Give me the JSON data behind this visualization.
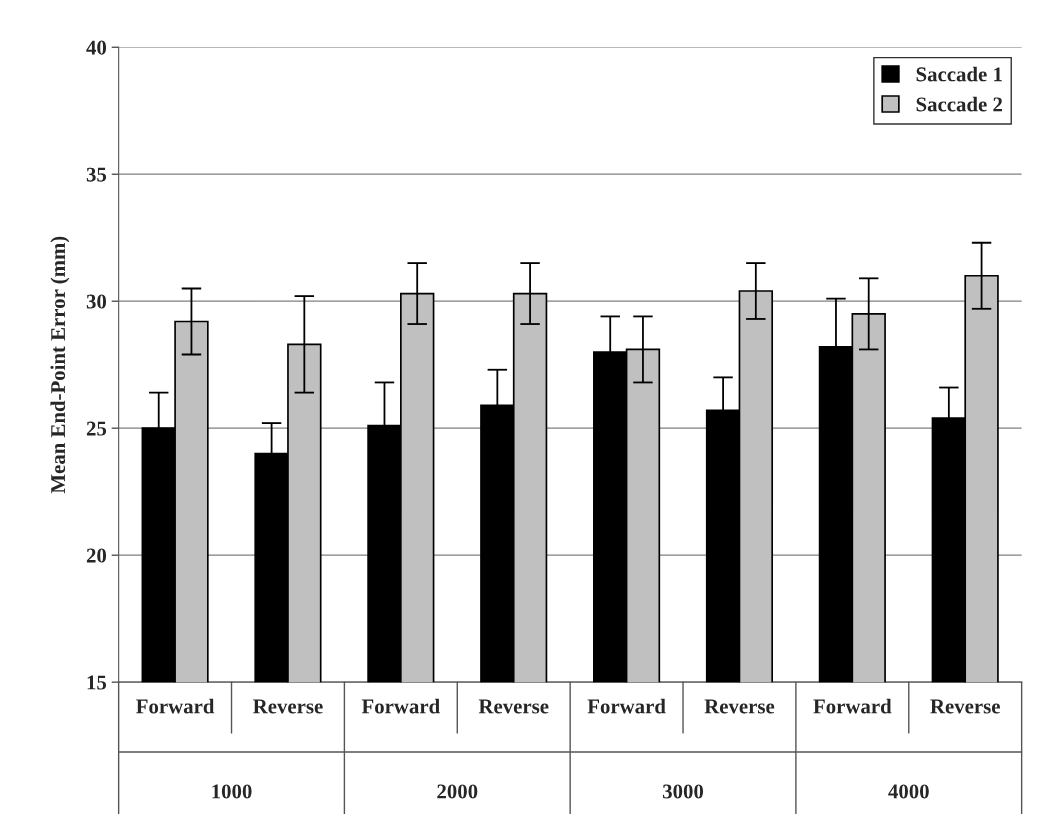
{
  "chart_data": {
    "type": "bar",
    "ylabel": "Mean End-Point Error (mm)",
    "categories": [
      "Forward",
      "Reverse",
      "Forward",
      "Reverse",
      "Forward",
      "Reverse",
      "Forward",
      "Reverse"
    ],
    "series": [
      {
        "name": "Saccade 1",
        "color": "#000000",
        "values": [
          25.0,
          24.0,
          25.1,
          25.9,
          28.0,
          25.7,
          28.2,
          25.4
        ],
        "errors": [
          1.4,
          1.2,
          1.7,
          1.4,
          1.4,
          1.3,
          1.9,
          1.2
        ]
      },
      {
        "name": "Saccade 2",
        "color": "#c0c0c0",
        "values": [
          29.2,
          28.3,
          30.3,
          30.3,
          28.1,
          30.4,
          29.5,
          31.0
        ],
        "errors": [
          1.3,
          1.9,
          1.2,
          1.2,
          1.3,
          1.1,
          1.4,
          1.3
        ]
      }
    ],
    "annotations": [
      "1000",
      "2000",
      "3000",
      "4000"
    ],
    "ylim": [
      15,
      40
    ],
    "yticks": [
      15,
      20,
      25,
      30,
      35,
      40
    ],
    "grid": "y",
    "legend": "top right"
  }
}
